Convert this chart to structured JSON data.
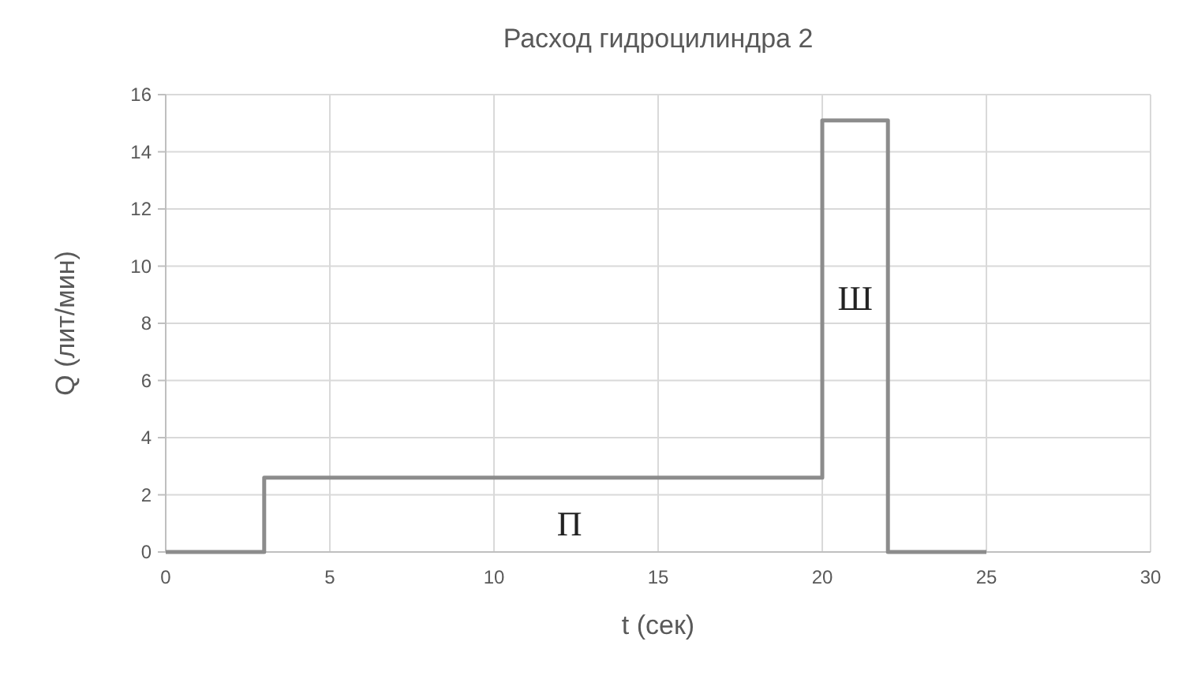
{
  "chart_data": {
    "type": "line",
    "title": "Расход гидроцилиндра 2",
    "xlabel": "t (сек)",
    "ylabel": "Q (лит/мин)",
    "x": [
      0,
      3,
      3,
      20,
      20,
      22,
      22,
      25
    ],
    "series": [
      {
        "color": "#8c8c8c",
        "values": [
          0,
          0,
          2.6,
          2.6,
          15.1,
          15.1,
          0,
          0
        ]
      }
    ],
    "xlim": [
      0,
      30
    ],
    "xticks": [
      0,
      5,
      10,
      15,
      20,
      25,
      30
    ],
    "ylim": [
      0,
      16
    ],
    "yticks": [
      0,
      2,
      4,
      6,
      8,
      10,
      12,
      14,
      16
    ],
    "grid": true,
    "marker": "none",
    "line_style": "solid",
    "annotations": [
      {
        "text": "П",
        "x": 12.3,
        "y": 1
      },
      {
        "text": "Ш",
        "x": 21,
        "y": 8.9
      }
    ]
  }
}
